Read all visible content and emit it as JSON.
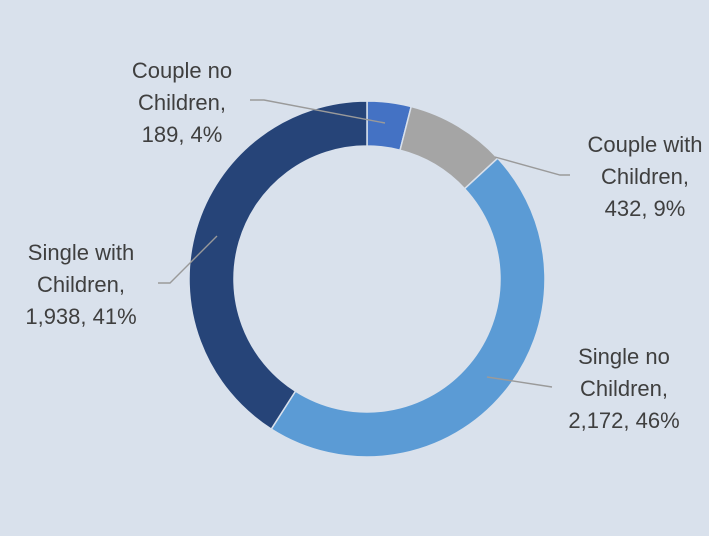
{
  "chart_data": {
    "type": "pie",
    "variant": "donut",
    "legend": "none",
    "series": [
      {
        "name": "Couple no Children",
        "label_lines": [
          "Couple no",
          "Children,",
          "189, 4%"
        ],
        "value": 189,
        "percent": 4,
        "color": "#4472c4"
      },
      {
        "name": "Couple with Children",
        "label_lines": [
          "Couple with",
          "Children,",
          "432, 9%"
        ],
        "value": 432,
        "percent": 9,
        "color": "#a5a5a5"
      },
      {
        "name": "Single no Children",
        "label_lines": [
          "Single no",
          "Children,",
          "2,172, 46%"
        ],
        "value": 2172,
        "percent": 46,
        "color": "#5b9bd5"
      },
      {
        "name": "Single with Children",
        "label_lines": [
          "Single with",
          "Children,",
          "1,938, 41%"
        ],
        "value": 1938,
        "percent": 41,
        "color": "#264478"
      }
    ],
    "background": "#d9e1ec",
    "label_color": "#3f3f3f",
    "leader_color": "#9a9a9a"
  }
}
